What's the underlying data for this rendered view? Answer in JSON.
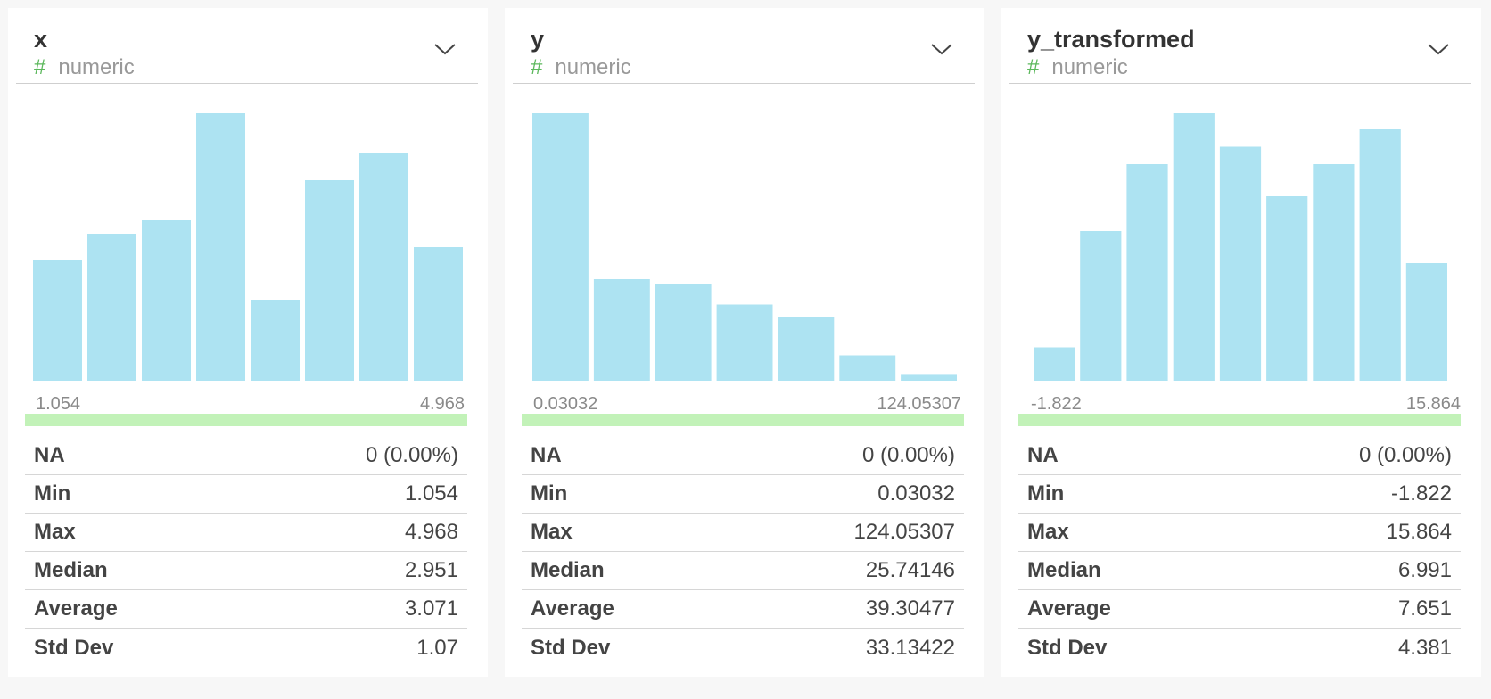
{
  "columns": [
    {
      "name": "x",
      "type": "numeric",
      "type_icon": "hash-icon",
      "range_min_label": "1.054",
      "range_max_label": "4.968",
      "stats": [
        {
          "label": "NA",
          "value": "0 (0.00%)"
        },
        {
          "label": "Min",
          "value": "1.054"
        },
        {
          "label": "Max",
          "value": "4.968"
        },
        {
          "label": "Median",
          "value": "2.951"
        },
        {
          "label": "Average",
          "value": "3.071"
        },
        {
          "label": "Std Dev",
          "value": "1.07"
        }
      ]
    },
    {
      "name": "y",
      "type": "numeric",
      "type_icon": "hash-icon",
      "range_min_label": "0.03032",
      "range_max_label": "124.05307",
      "stats": [
        {
          "label": "NA",
          "value": "0 (0.00%)"
        },
        {
          "label": "Min",
          "value": "0.03032"
        },
        {
          "label": "Max",
          "value": "124.05307"
        },
        {
          "label": "Median",
          "value": "25.74146"
        },
        {
          "label": "Average",
          "value": "39.30477"
        },
        {
          "label": "Std Dev",
          "value": "33.13422"
        }
      ]
    },
    {
      "name": "y_transformed",
      "type": "numeric",
      "type_icon": "hash-icon",
      "range_min_label": "-1.822",
      "range_max_label": "15.864",
      "stats": [
        {
          "label": "NA",
          "value": "0 (0.00%)"
        },
        {
          "label": "Min",
          "value": "-1.822"
        },
        {
          "label": "Max",
          "value": "15.864"
        },
        {
          "label": "Median",
          "value": "6.991"
        },
        {
          "label": "Average",
          "value": "7.651"
        },
        {
          "label": "Std Dev",
          "value": "4.381"
        }
      ]
    }
  ],
  "colors": {
    "bar": "#ade3f2",
    "range_bar": "#c2f2b8",
    "type_icon": "#5cb85c"
  },
  "chart_data": [
    {
      "type": "bar",
      "title": "",
      "x_range": [
        1.054,
        4.968
      ],
      "values": [
        0.45,
        0.55,
        0.6,
        1.0,
        0.3,
        0.75,
        0.85,
        0.5
      ]
    },
    {
      "type": "bar",
      "title": "",
      "x_range": [
        0.03032,
        124.05307
      ],
      "values": [
        1.0,
        0.38,
        0.36,
        0.285,
        0.24,
        0.095,
        0.022
      ]
    },
    {
      "type": "bar",
      "title": "",
      "x_range": [
        -1.822,
        15.864
      ],
      "values": [
        0.125,
        0.56,
        0.81,
        1.0,
        0.875,
        0.69,
        0.81,
        0.94,
        0.44
      ]
    }
  ]
}
